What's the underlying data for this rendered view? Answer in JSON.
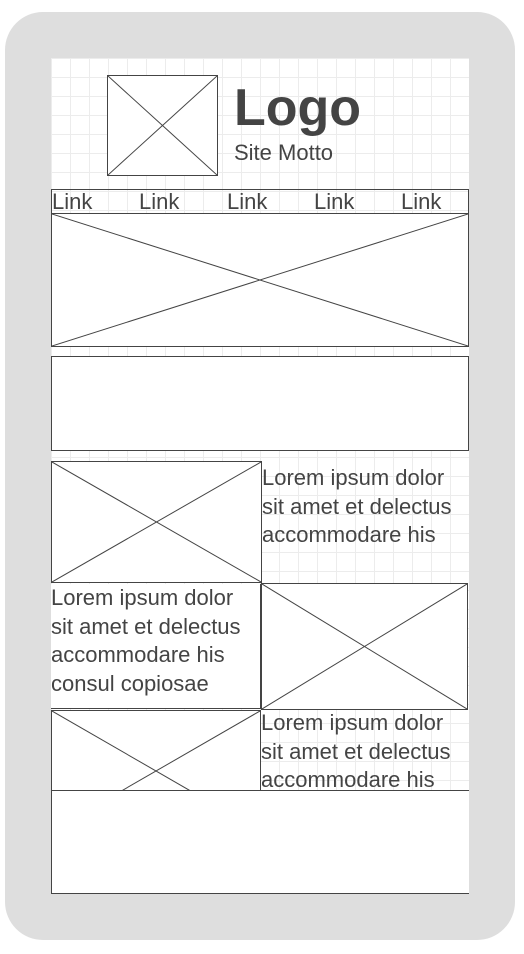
{
  "header": {
    "logo": "Logo",
    "motto": "Site Motto"
  },
  "nav": {
    "links": [
      "Link",
      "Link",
      "Link",
      "Link",
      "Link"
    ]
  },
  "content": {
    "block1_lines": [
      "Lorem ipsum dolor",
      "sit amet et delectus",
      "accommodare his"
    ],
    "block2_lines": [
      "Lorem ipsum dolor",
      "sit amet et delectus",
      "accommodare his",
      "consul copiosae"
    ],
    "block3_lines": [
      "Lorem ipsum dolor",
      "sit amet et delectus",
      "accommodare his"
    ]
  },
  "colors": {
    "frame": "#dedede",
    "stroke": "#444444",
    "grid": "#ececec",
    "text": "#444444"
  }
}
